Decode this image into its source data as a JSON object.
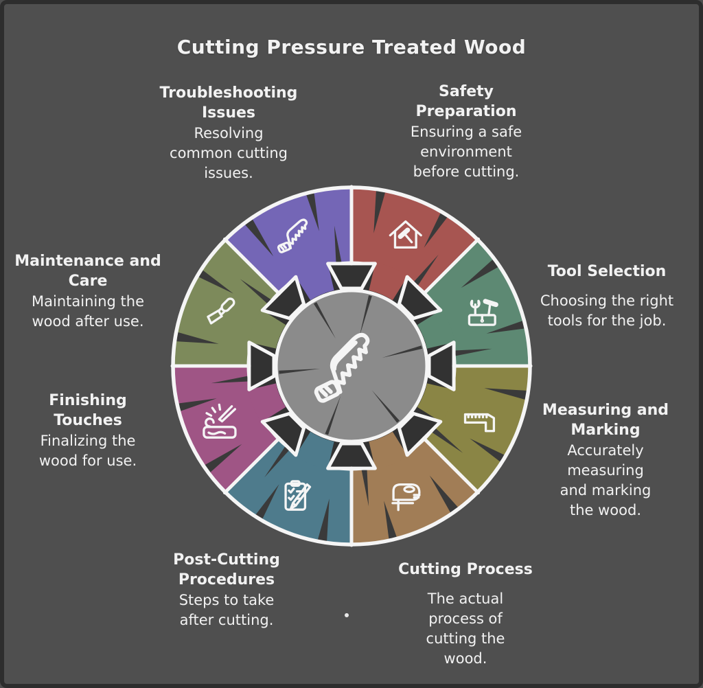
{
  "title": "Cutting Pressure Treated Wood",
  "theme": {
    "background": "#4f4f4f",
    "frame_border": "#2d2d2d",
    "text": "#f2f2f2",
    "outline": "#f5f5f5",
    "dark_accent": "#323232",
    "crack": "#3a3a3a",
    "center_fill": "#8b8b8b"
  },
  "center": {
    "icon": "handsaw-icon"
  },
  "segments": [
    {
      "id": "safety-preparation",
      "label": "Safety Preparation",
      "description": "Ensuring a safe environment before cutting.",
      "color": "#a75551",
      "icon": "house-hammer-icon"
    },
    {
      "id": "tool-selection",
      "label": "Tool Selection",
      "description": "Choosing the right tools for the job.",
      "color": "#5d8973",
      "icon": "wrench-hammer-icon"
    },
    {
      "id": "measuring-and-marking",
      "label": "Measuring and Marking",
      "description": "Accurately measuring and marking the wood.",
      "color": "#8a8545",
      "icon": "tape-measure-icon"
    },
    {
      "id": "cutting-process",
      "label": "Cutting Process",
      "description": "The actual process of cutting the wood.",
      "color": "#a17d56",
      "icon": "jigsaw-icon"
    },
    {
      "id": "post-cutting-procedures",
      "label": "Post-Cutting Procedures",
      "description": "Steps to take after cutting.",
      "color": "#4e7b8c",
      "icon": "clipboard-pencil-icon"
    },
    {
      "id": "finishing-touches",
      "label": "Finishing Touches",
      "description": "Finalizing the wood for use.",
      "color": "#9f5585",
      "icon": "carving-tool-icon"
    },
    {
      "id": "maintenance-and-care",
      "label": "Maintenance and Care",
      "description": "Maintaining the wood after use.",
      "color": "#7d8a5b",
      "icon": "chisel-icon"
    },
    {
      "id": "troubleshooting-issues",
      "label": "Troubleshooting Issues",
      "description": "Resolving common cutting issues.",
      "color": "#7466b6",
      "icon": "handsaw-icon"
    }
  ]
}
